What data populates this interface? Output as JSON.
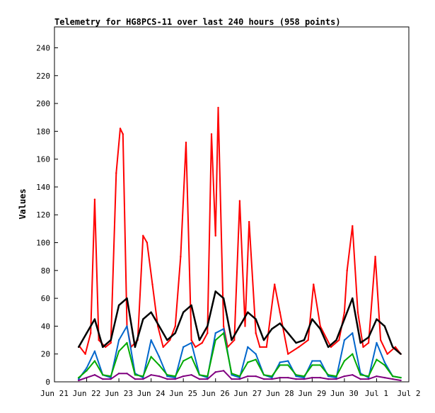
{
  "chart_data": {
    "type": "line",
    "title": "Telemetry for HG8PCS-11 over last 240 hours (958 points)",
    "xlabel": "",
    "ylabel": "Values",
    "ylim": [
      0,
      255
    ],
    "xlim": [
      "2023-06-21T00:00",
      "2023-07-02T00:00"
    ],
    "y_ticks": [
      0,
      20,
      40,
      60,
      80,
      100,
      120,
      140,
      160,
      180,
      200,
      220,
      240
    ],
    "x_tick_dates": [
      "2023-06-21",
      "2023-06-22",
      "2023-06-23",
      "2023-06-24",
      "2023-06-25",
      "2023-06-26",
      "2023-06-27",
      "2023-06-28",
      "2023-06-29",
      "2023-06-30",
      "2023-07-01",
      "2023-07-02"
    ],
    "x_tick_labels": [
      "Jun 21",
      "Jun 22",
      "Jun 23",
      "Jun 24",
      "Jun 25",
      "Jun 26",
      "Jun 27",
      "Jun 28",
      "Jun 29",
      "Jun 30",
      "Jul 1",
      "Jul 2"
    ],
    "grid": false,
    "legend": "none",
    "series": [
      {
        "color": "#ff0000",
        "x": [
          "2023-06-21T19:00",
          "2023-06-21T23:00",
          "2023-06-22T03:00",
          "2023-06-22T06:00",
          "2023-06-22T09:00",
          "2023-06-22T14:00",
          "2023-06-22T18:00",
          "2023-06-22T22:00",
          "2023-06-23T01:00",
          "2023-06-23T03:00",
          "2023-06-23T06:00",
          "2023-06-23T09:00",
          "2023-06-23T14:00",
          "2023-06-23T18:00",
          "2023-06-23T21:00",
          "2023-06-24T01:00",
          "2023-06-24T05:00",
          "2023-06-24T09:00",
          "2023-06-24T14:00",
          "2023-06-24T18:00",
          "2023-06-24T22:00",
          "2023-06-25T02:00",
          "2023-06-25T06:00",
          "2023-06-25T09:00",
          "2023-06-25T14:00",
          "2023-06-25T18:00",
          "2023-06-25T21:00",
          "2023-06-26T00:00",
          "2023-06-26T02:00",
          "2023-06-26T06:00",
          "2023-06-26T09:00",
          "2023-06-26T14:00",
          "2023-06-26T18:00",
          "2023-06-26T22:00",
          "2023-06-27T01:00",
          "2023-06-27T06:00",
          "2023-06-27T09:00",
          "2023-06-27T14:00",
          "2023-06-27T20:00",
          "2023-06-28T00:00",
          "2023-06-28T06:00",
          "2023-06-28T14:00",
          "2023-06-28T21:00",
          "2023-06-29T01:00",
          "2023-06-29T06:00",
          "2023-06-29T14:00",
          "2023-06-29T20:00",
          "2023-06-30T00:00",
          "2023-06-30T02:00",
          "2023-06-30T06:00",
          "2023-06-30T10:00",
          "2023-06-30T14:00",
          "2023-06-30T18:00",
          "2023-06-30T23:00",
          "2023-07-01T03:00",
          "2023-07-01T08:00",
          "2023-07-01T14:00",
          "2023-07-01T18:00"
        ],
        "y": [
          25,
          20,
          35,
          131,
          30,
          25,
          28,
          150,
          182,
          178,
          40,
          25,
          30,
          105,
          100,
          70,
          40,
          25,
          30,
          40,
          90,
          172,
          30,
          25,
          28,
          35,
          178,
          105,
          197,
          40,
          25,
          30,
          130,
          40,
          115,
          35,
          25,
          25,
          70,
          50,
          20,
          25,
          30,
          70,
          40,
          25,
          30,
          50,
          80,
          112,
          50,
          25,
          28,
          90,
          30,
          20,
          25,
          20
        ]
      },
      {
        "color": "#000000",
        "x": [
          "2023-06-21T18:00",
          "2023-06-22T00:00",
          "2023-06-22T06:00",
          "2023-06-22T12:00",
          "2023-06-22T18:00",
          "2023-06-23T00:00",
          "2023-06-23T06:00",
          "2023-06-23T12:00",
          "2023-06-23T18:00",
          "2023-06-24T00:00",
          "2023-06-24T06:00",
          "2023-06-24T12:00",
          "2023-06-24T18:00",
          "2023-06-25T00:00",
          "2023-06-25T06:00",
          "2023-06-25T12:00",
          "2023-06-25T18:00",
          "2023-06-26T00:00",
          "2023-06-26T06:00",
          "2023-06-26T12:00",
          "2023-06-26T18:00",
          "2023-06-27T00:00",
          "2023-06-27T06:00",
          "2023-06-27T12:00",
          "2023-06-27T18:00",
          "2023-06-28T00:00",
          "2023-06-28T06:00",
          "2023-06-28T12:00",
          "2023-06-28T18:00",
          "2023-06-29T00:00",
          "2023-06-29T06:00",
          "2023-06-29T12:00",
          "2023-06-29T18:00",
          "2023-06-30T00:00",
          "2023-06-30T06:00",
          "2023-06-30T12:00",
          "2023-06-30T18:00",
          "2023-07-01T00:00",
          "2023-07-01T06:00",
          "2023-07-01T12:00",
          "2023-07-01T18:00"
        ],
        "y": [
          25,
          35,
          45,
          25,
          30,
          55,
          60,
          25,
          45,
          50,
          40,
          30,
          35,
          50,
          55,
          30,
          40,
          65,
          60,
          30,
          40,
          50,
          45,
          30,
          38,
          42,
          35,
          28,
          30,
          45,
          38,
          25,
          30,
          45,
          60,
          28,
          32,
          45,
          40,
          25,
          20
        ]
      },
      {
        "color": "#0066cc",
        "x": [
          "2023-06-21T18:00",
          "2023-06-22T00:00",
          "2023-06-22T06:00",
          "2023-06-22T12:00",
          "2023-06-22T18:00",
          "2023-06-23T00:00",
          "2023-06-23T06:00",
          "2023-06-23T12:00",
          "2023-06-23T18:00",
          "2023-06-24T00:00",
          "2023-06-24T06:00",
          "2023-06-24T12:00",
          "2023-06-24T18:00",
          "2023-06-25T00:00",
          "2023-06-25T06:00",
          "2023-06-25T12:00",
          "2023-06-25T18:00",
          "2023-06-26T00:00",
          "2023-06-26T06:00",
          "2023-06-26T12:00",
          "2023-06-26T18:00",
          "2023-06-27T00:00",
          "2023-06-27T06:00",
          "2023-06-27T12:00",
          "2023-06-27T18:00",
          "2023-06-28T00:00",
          "2023-06-28T06:00",
          "2023-06-28T12:00",
          "2023-06-28T18:00",
          "2023-06-29T00:00",
          "2023-06-29T06:00",
          "2023-06-29T12:00",
          "2023-06-29T18:00",
          "2023-06-30T00:00",
          "2023-06-30T06:00",
          "2023-06-30T12:00",
          "2023-06-30T18:00",
          "2023-07-01T00:00",
          "2023-07-01T06:00",
          "2023-07-01T12:00",
          "2023-07-01T18:00"
        ],
        "y": [
          2,
          10,
          22,
          5,
          3,
          30,
          40,
          6,
          3,
          30,
          18,
          4,
          3,
          25,
          28,
          5,
          3,
          35,
          38,
          5,
          3,
          25,
          20,
          5,
          3,
          14,
          15,
          4,
          3,
          15,
          15,
          4,
          3,
          30,
          35,
          6,
          3,
          28,
          14,
          4,
          3
        ]
      },
      {
        "color": "#00aa00",
        "x": [
          "2023-06-21T18:00",
          "2023-06-22T00:00",
          "2023-06-22T06:00",
          "2023-06-22T12:00",
          "2023-06-22T18:00",
          "2023-06-23T00:00",
          "2023-06-23T06:00",
          "2023-06-23T12:00",
          "2023-06-23T18:00",
          "2023-06-24T00:00",
          "2023-06-24T06:00",
          "2023-06-24T12:00",
          "2023-06-24T18:00",
          "2023-06-25T00:00",
          "2023-06-25T06:00",
          "2023-06-25T12:00",
          "2023-06-25T18:00",
          "2023-06-26T00:00",
          "2023-06-26T06:00",
          "2023-06-26T12:00",
          "2023-06-26T18:00",
          "2023-06-27T00:00",
          "2023-06-27T06:00",
          "2023-06-27T12:00",
          "2023-06-27T18:00",
          "2023-06-28T00:00",
          "2023-06-28T06:00",
          "2023-06-28T12:00",
          "2023-06-28T18:00",
          "2023-06-29T00:00",
          "2023-06-29T06:00",
          "2023-06-29T12:00",
          "2023-06-29T18:00",
          "2023-06-30T00:00",
          "2023-06-30T06:00",
          "2023-06-30T12:00",
          "2023-06-30T18:00",
          "2023-07-01T00:00",
          "2023-07-01T06:00",
          "2023-07-01T12:00",
          "2023-07-01T18:00"
        ],
        "y": [
          3,
          8,
          15,
          5,
          4,
          22,
          28,
          5,
          4,
          18,
          12,
          5,
          4,
          15,
          18,
          5,
          4,
          30,
          35,
          6,
          4,
          14,
          16,
          5,
          4,
          12,
          12,
          5,
          4,
          12,
          12,
          5,
          4,
          15,
          20,
          5,
          4,
          16,
          12,
          4,
          3
        ]
      },
      {
        "color": "#800080",
        "x": [
          "2023-06-21T18:00",
          "2023-06-22T00:00",
          "2023-06-22T06:00",
          "2023-06-22T12:00",
          "2023-06-22T18:00",
          "2023-06-23T00:00",
          "2023-06-23T06:00",
          "2023-06-23T12:00",
          "2023-06-23T18:00",
          "2023-06-24T00:00",
          "2023-06-24T06:00",
          "2023-06-24T12:00",
          "2023-06-24T18:00",
          "2023-06-25T00:00",
          "2023-06-25T06:00",
          "2023-06-25T12:00",
          "2023-06-25T18:00",
          "2023-06-26T00:00",
          "2023-06-26T06:00",
          "2023-06-26T12:00",
          "2023-06-26T18:00",
          "2023-06-27T00:00",
          "2023-06-27T06:00",
          "2023-06-27T12:00",
          "2023-06-27T18:00",
          "2023-06-28T00:00",
          "2023-06-28T06:00",
          "2023-06-28T12:00",
          "2023-06-28T18:00",
          "2023-06-29T00:00",
          "2023-06-29T06:00",
          "2023-06-29T12:00",
          "2023-06-29T18:00",
          "2023-06-30T00:00",
          "2023-06-30T06:00",
          "2023-06-30T12:00",
          "2023-06-30T18:00",
          "2023-07-01T00:00",
          "2023-07-01T06:00",
          "2023-07-01T12:00",
          "2023-07-01T18:00"
        ],
        "y": [
          1,
          3,
          5,
          2,
          2,
          6,
          6,
          2,
          2,
          5,
          4,
          2,
          2,
          4,
          5,
          2,
          2,
          7,
          8,
          2,
          2,
          4,
          4,
          2,
          2,
          3,
          3,
          2,
          2,
          3,
          3,
          2,
          2,
          4,
          5,
          2,
          2,
          4,
          3,
          2,
          1
        ]
      }
    ]
  }
}
